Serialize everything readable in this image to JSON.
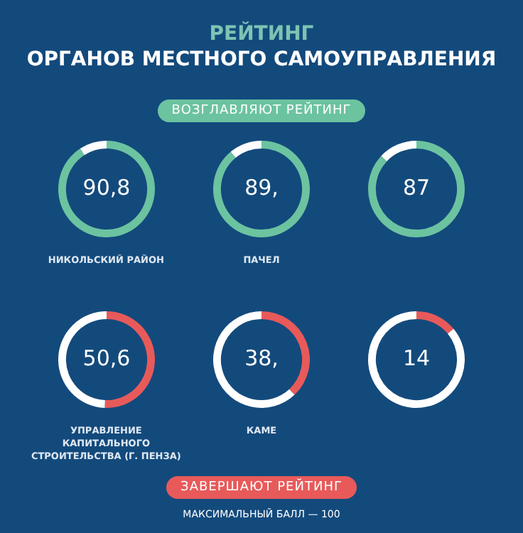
{
  "chart_data": [
    {
      "type": "other",
      "title": "РЕЙТИНГ",
      "subtitle": "ОРГАНОВ МЕСТНОГО САМОУПРАВЛЕНИЯ",
      "annotations": [
        "ВОЗГЛАВЛЯЮТ РЕЙТИНГ",
        "ЗАВЕРШАЮТ РЕЙТИНГ",
        "МАКСИМАЛЬНЫЙ БАЛЛ — 100"
      ]
    },
    {
      "type": "donut",
      "title": "НИКОЛЬСКИЙ РАЙОН",
      "categories": [
        null,
        null
      ],
      "values": [
        90.8,
        9.2
      ],
      "colors": [
        "#6cc3a0",
        "#ffffff"
      ],
      "value_labels": [
        "90,8",
        null
      ],
      "legend": false
    },
    {
      "type": "donut",
      "title": "ПАЧЕЛ",
      "categories": [
        null,
        null
      ],
      "values": [
        89,
        11
      ],
      "colors": [
        "#6cc3a0",
        "#ffffff"
      ],
      "value_labels": [
        "89,",
        null
      ],
      "legend": false
    },
    {
      "type": "donut",
      "categories": [
        null,
        null
      ],
      "values": [
        87,
        13
      ],
      "colors": [
        "#6cc3a0",
        "#ffffff"
      ],
      "value_labels": [
        "87",
        null
      ],
      "legend": false
    },
    {
      "type": "donut",
      "title": "УПРАВЛЕНИЕ КАПИТАЛЬНОГО СТРОИТЕЛЬСТВА (Г. ПЕНЗА)",
      "categories": [
        null,
        null
      ],
      "values": [
        50.6,
        49.4
      ],
      "colors": [
        "#e85a5a",
        "#ffffff"
      ],
      "value_labels": [
        "50,6",
        null
      ],
      "legend": false
    },
    {
      "type": "donut",
      "title": "КАМЕ",
      "categories": [
        null,
        null
      ],
      "values": [
        38,
        62
      ],
      "colors": [
        "#e85a5a",
        "#ffffff"
      ],
      "value_labels": [
        "38,",
        null
      ],
      "legend": false
    },
    {
      "type": "donut",
      "categories": [
        null,
        null
      ],
      "values": [
        14,
        86
      ],
      "colors": [
        "#e85a5a",
        "#ffffff"
      ],
      "value_labels": [
        "14",
        null
      ],
      "legend": false
    }
  ]
}
